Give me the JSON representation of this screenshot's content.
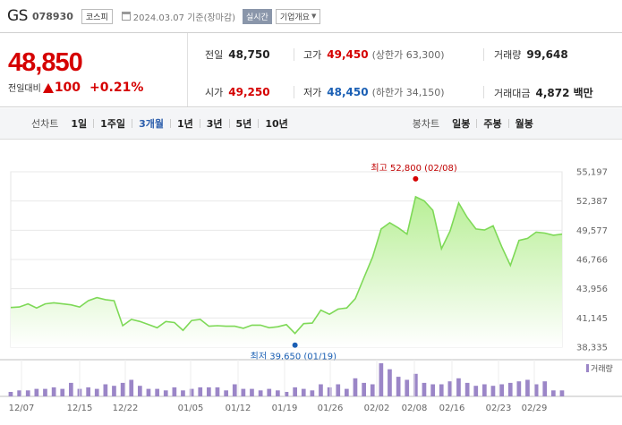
{
  "header": {
    "name": "GS",
    "code": "078930",
    "market": "코스피",
    "date_text": "2024.03.07 기준(장마감)",
    "realtime_label": "실시간",
    "company_label": "기업개요"
  },
  "summary": {
    "price": "48,850",
    "change_label": "전일대비",
    "change_amount": "100",
    "change_percent": "+0.21%",
    "prev_close_label": "전일",
    "prev_close": "48,750",
    "high_label": "고가",
    "high": "49,450",
    "upper_limit": "(상한가 63,300)",
    "volume_label": "거래량",
    "volume": "99,648",
    "open_label": "시가",
    "open": "49,250",
    "low_label": "저가",
    "low": "48,450",
    "lower_limit": "(하한가 34,150)",
    "amount_label": "거래대금",
    "amount": "4,872 백만"
  },
  "period_bar": {
    "line_label": "선차트",
    "line_periods": [
      "1일",
      "1주일",
      "3개월",
      "1년",
      "3년",
      "5년",
      "10년"
    ],
    "active": "3개월",
    "candle_label": "봉차트",
    "candle_periods": [
      "일봉",
      "주봉",
      "월봉"
    ]
  },
  "colors": {
    "up": "#d50000",
    "down": "#1a5fb4",
    "line": "#7ed957",
    "volume": "#9b86c7",
    "active_period": "#2b5dab"
  },
  "chart_data": {
    "type": "area",
    "y_ticks": [
      "55,197",
      "52,387",
      "49,577",
      "46,766",
      "43,956",
      "41,145",
      "38,335"
    ],
    "ylim": [
      38335,
      55197
    ],
    "x_ticks": [
      "12/07",
      "12/15",
      "12/22",
      "01/05",
      "01/12",
      "01/19",
      "01/26",
      "02/02",
      "02/08",
      "02/16",
      "02/23",
      "02/29"
    ],
    "high_annotation": "최고 52,800 (02/08)",
    "low_annotation": "최저 39,650 (01/19)",
    "high_index": 47,
    "low_index": 33,
    "volume_legend": "거래량",
    "prices": [
      42150,
      42200,
      42500,
      42100,
      42500,
      42600,
      42500,
      42400,
      42200,
      42800,
      43100,
      42900,
      42800,
      40400,
      41000,
      40800,
      40500,
      40200,
      40800,
      40700,
      39950,
      40900,
      41000,
      40350,
      40400,
      40350,
      40350,
      40150,
      40450,
      40450,
      40200,
      40300,
      40500,
      39650,
      40600,
      40650,
      41900,
      41500,
      42000,
      42100,
      43000,
      45000,
      47000,
      49700,
      50300,
      49800,
      49200,
      52800,
      52400,
      51500,
      47800,
      49500,
      52200,
      50800,
      49700,
      49600,
      50000,
      48000,
      46200,
      48600,
      48800,
      49400,
      49300,
      49100,
      49200
    ],
    "volumes": [
      3,
      4,
      4,
      5,
      5,
      6,
      5,
      9,
      5,
      6,
      5,
      8,
      7,
      9,
      11,
      7,
      5,
      5,
      4,
      6,
      4,
      5,
      6,
      6,
      6,
      4,
      8,
      5,
      5,
      4,
      5,
      4,
      3,
      6,
      5,
      4,
      8,
      6,
      8,
      5,
      12,
      9,
      8,
      22,
      18,
      13,
      11,
      15,
      9,
      8,
      8,
      10,
      12,
      9,
      7,
      8,
      7,
      8,
      9,
      10,
      11,
      8,
      10,
      4,
      4
    ]
  }
}
